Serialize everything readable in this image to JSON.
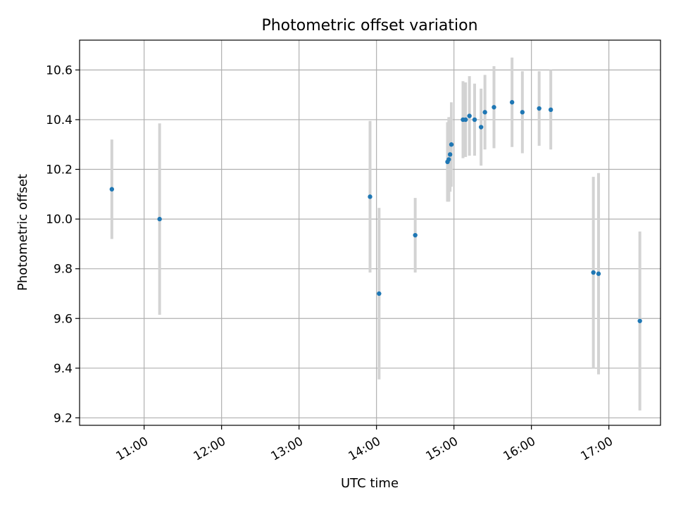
{
  "chart_data": {
    "type": "scatter",
    "title": "Photometric offset variation",
    "xlabel": "UTC time",
    "ylabel": "Photometric offset",
    "x_scale": "time",
    "xlim": [
      "10:10",
      "17:40"
    ],
    "ylim": [
      9.17,
      10.72
    ],
    "x_ticks": [
      "11:00",
      "12:00",
      "13:00",
      "14:00",
      "15:00",
      "16:00",
      "17:00"
    ],
    "y_ticks": [
      9.2,
      9.4,
      9.6,
      9.8,
      10.0,
      10.2,
      10.4,
      10.6
    ],
    "y_tick_labels": [
      "9.2",
      "9.4",
      "9.6",
      "9.8",
      "10.0",
      "10.2",
      "10.4",
      "10.6"
    ],
    "grid": true,
    "colors": {
      "points": "#1f77b4",
      "error_bars": "#d3d3d3"
    },
    "series": [
      {
        "points": [
          {
            "x": "10:35",
            "y": 10.12,
            "err": 0.2
          },
          {
            "x": "11:12",
            "y": 10.0,
            "err": 0.385
          },
          {
            "x": "13:55",
            "y": 10.09,
            "err": 0.305
          },
          {
            "x": "14:02",
            "y": 9.7,
            "err": 0.345
          },
          {
            "x": "14:30",
            "y": 9.935,
            "err": 0.15
          },
          {
            "x": "14:55",
            "y": 10.23,
            "err": 0.16
          },
          {
            "x": "14:56",
            "y": 10.24,
            "err": 0.17
          },
          {
            "x": "14:57",
            "y": 10.26,
            "err": 0.15
          },
          {
            "x": "14:58",
            "y": 10.3,
            "err": 0.17
          },
          {
            "x": "15:07",
            "y": 10.4,
            "err": 0.155
          },
          {
            "x": "15:09",
            "y": 10.4,
            "err": 0.15
          },
          {
            "x": "15:12",
            "y": 10.415,
            "err": 0.16
          },
          {
            "x": "15:16",
            "y": 10.4,
            "err": 0.145
          },
          {
            "x": "15:21",
            "y": 10.37,
            "err": 0.155
          },
          {
            "x": "15:24",
            "y": 10.43,
            "err": 0.15
          },
          {
            "x": "15:31",
            "y": 10.45,
            "err": 0.165
          },
          {
            "x": "15:45",
            "y": 10.47,
            "err": 0.18
          },
          {
            "x": "15:53",
            "y": 10.43,
            "err": 0.165
          },
          {
            "x": "16:06",
            "y": 10.445,
            "err": 0.15
          },
          {
            "x": "16:15",
            "y": 10.44,
            "err": 0.16
          },
          {
            "x": "16:48",
            "y": 9.785,
            "err": 0.385
          },
          {
            "x": "16:52",
            "y": 9.78,
            "err": 0.405
          },
          {
            "x": "17:24",
            "y": 9.59,
            "err": 0.36
          }
        ]
      }
    ]
  }
}
